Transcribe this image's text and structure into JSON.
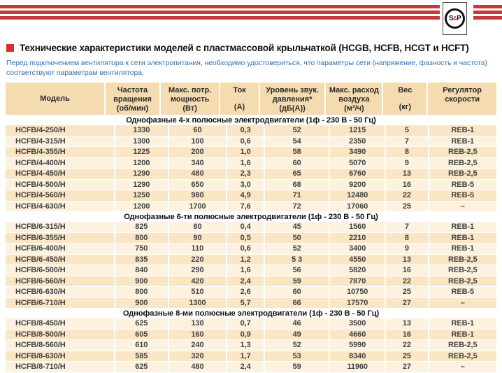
{
  "logo": {
    "s": "S",
    "amp": "&",
    "p": "P"
  },
  "header": {
    "title": "Технические характеристики моделей с пластмассовой крыльчаткой (HCGB, HCFB, HCGT и HCFT)",
    "subtitle": "Перед подключением вентилятора к сети электропитания, необходимо удостовериться, что параметры сети (напряжение, фазность и частота) соответствуют параметрам вентилятора."
  },
  "colors": {
    "stripe_red": "#c23a3e",
    "bullet_red": "#d5302f",
    "note_blue": "#3474b4",
    "header_tan": "#f4dbb0",
    "row_peach": "#fae5c4",
    "row_cream": "#fdf2e0"
  },
  "table": {
    "columns": [
      {
        "lines": [
          "Модель"
        ],
        "unit": ""
      },
      {
        "lines": [
          "Частота",
          "вращения"
        ],
        "unit": "(об/мин)"
      },
      {
        "lines": [
          "Макс. потр.",
          "мощность"
        ],
        "unit": "(Вт)"
      },
      {
        "lines": [
          "Ток"
        ],
        "unit": "(А)"
      },
      {
        "lines": [
          "Уровень звук.",
          "давления*"
        ],
        "unit": "(дБ(А))"
      },
      {
        "lines": [
          "Макс. расход",
          "воздуха"
        ],
        "unit": "(м³/ч)"
      },
      {
        "lines": [
          "Вес"
        ],
        "unit": "(кг)"
      },
      {
        "lines": [
          "Регулятор",
          "скорости"
        ],
        "unit": ""
      }
    ],
    "sections": [
      {
        "label": "Однофазные 4-х полюсные электродвигатели (1ф - 230 В - 50 Гц)",
        "first_shade": "dark",
        "rows": [
          [
            "HCFB/4-250/H",
            "1330",
            "60",
            "0,3",
            "52",
            "1215",
            "5",
            "REB-1"
          ],
          [
            "HCFB/4-315/H",
            "1300",
            "100",
            "0,6",
            "54",
            "2350",
            "7",
            "REB-1"
          ],
          [
            "HCFB/4-355/H",
            "1225",
            "200",
            "1,0",
            "58",
            "3490",
            "8",
            "REB-2,5"
          ],
          [
            "HCFB/4-400/H",
            "1200",
            "340",
            "1,6",
            "60",
            "5070",
            "9",
            "REB-2,5"
          ],
          [
            "HCFB/4-450/H",
            "1290",
            "480",
            "2,3",
            "65",
            "6760",
            "13",
            "REB-2,5"
          ],
          [
            "HCFB/4-500/H",
            "1290",
            "650",
            "3,0",
            "68",
            "9200",
            "16",
            "REB-5"
          ],
          [
            "HCFB/4-560/H",
            "1250",
            "980",
            "4,9",
            "71",
            "12480",
            "22",
            "REB-5"
          ],
          [
            "HCFB/4-630/H",
            "1200",
            "1700",
            "7,6",
            "72",
            "17060",
            "25",
            "–"
          ]
        ]
      },
      {
        "label": "Однофазные 6-ти полюсные электродвигатели (1ф - 230 В - 50 Гц)",
        "first_shade": "light",
        "rows": [
          [
            "HCFB/6-315/H",
            "825",
            "80",
            "0,4",
            "45",
            "1560",
            "7",
            "REB-1"
          ],
          [
            "HCFB/6-355/H",
            "800",
            "90",
            "0,5",
            "50",
            "2210",
            "8",
            "REB-1"
          ],
          [
            "HCFB/6-400/H",
            "750",
            "110",
            "0,6",
            "52",
            "3400",
            "9",
            "REB-1"
          ],
          [
            "HCFB/6-450/H",
            "835",
            "220",
            "1,2",
            "5 3",
            "4550",
            "13",
            "REB-2,5"
          ],
          [
            "HCFB/6-500/H",
            "840",
            "290",
            "1,6",
            "56",
            "5820",
            "16",
            "REB-2,5"
          ],
          [
            "HCFB/6-560/H",
            "900",
            "420",
            "2,4",
            "59",
            "7870",
            "22",
            "REB-2,5"
          ],
          [
            "HCFB/6-630/H",
            "800",
            "510",
            "2,6",
            "60",
            "10750",
            "25",
            "REB-5"
          ],
          [
            "HCFB/6-710/H",
            "900",
            "1300",
            "5,7",
            "66",
            "17570",
            "27",
            "–"
          ]
        ]
      },
      {
        "label": "Однофазные 8-ми полюсные электродвигатели (1ф - 230 В - 50 Гц)",
        "first_shade": "light",
        "rows": [
          [
            "HCFB/8-450/H",
            "625",
            "130",
            "0,7",
            "46",
            "3500",
            "13",
            "REB-1"
          ],
          [
            "HCFB/8-500/H",
            "605",
            "160",
            "0,9",
            "49",
            "4660",
            "16",
            "REB-1"
          ],
          [
            "HCFB/8-560/H",
            "610",
            "240",
            "1,3",
            "52",
            "5990",
            "22",
            "REB-2,5"
          ],
          [
            "HCFB/8-630/H",
            "585",
            "320",
            "1,7",
            "53",
            "8340",
            "25",
            "REB-2,5"
          ],
          [
            "HCFB/8-710/H",
            "625",
            "480",
            "2,4",
            "59",
            "11960",
            "27",
            "–"
          ]
        ]
      }
    ]
  }
}
